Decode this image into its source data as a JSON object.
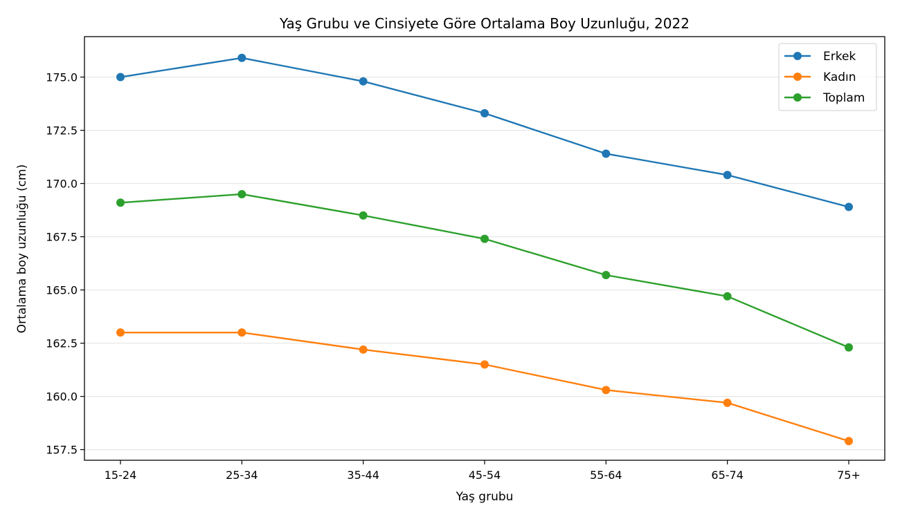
{
  "chart_data": {
    "type": "line",
    "title": "Yaş Grubu ve Cinsiyete Göre Ortalama Boy Uzunluğu, 2022",
    "xlabel": "Yaş grubu",
    "ylabel": "Ortalama boy uzunluğu (cm)",
    "categories": [
      "15-24",
      "25-34",
      "35-44",
      "45-54",
      "55-64",
      "65-74",
      "75+"
    ],
    "ylim": [
      157.0,
      176.9
    ],
    "yticks": [
      "157.5",
      "160.0",
      "162.5",
      "165.0",
      "167.5",
      "170.0",
      "172.5",
      "175.0"
    ],
    "grid": "horizontal",
    "legend_position": "top-right",
    "series": [
      {
        "name": "Erkek",
        "color": "#1f77b4",
        "values": [
          175.0,
          175.9,
          174.8,
          173.3,
          171.4,
          170.4,
          168.9
        ]
      },
      {
        "name": "Kadın",
        "color": "#ff7f0e",
        "values": [
          163.0,
          163.0,
          162.2,
          161.5,
          160.3,
          159.7,
          157.9
        ]
      },
      {
        "name": "Toplam",
        "color": "#2ca02c",
        "values": [
          169.1,
          169.5,
          168.5,
          167.4,
          165.7,
          164.7,
          162.3
        ]
      }
    ]
  }
}
